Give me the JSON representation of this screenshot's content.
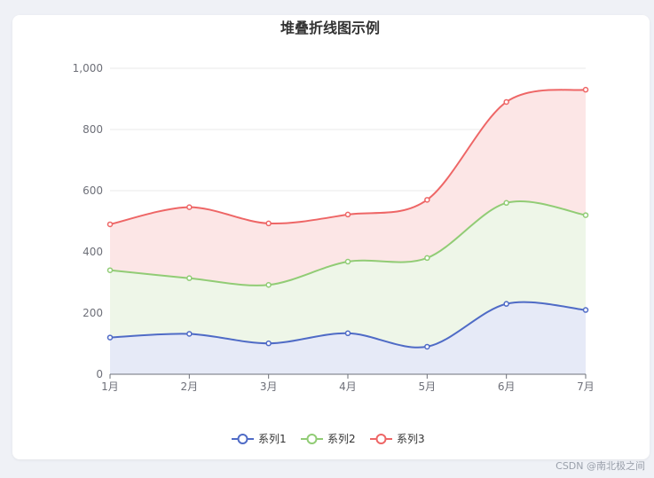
{
  "chart_data": {
    "type": "line",
    "title": "堆叠折线图示例",
    "stacked": true,
    "area": true,
    "smooth": true,
    "categories": [
      "1月",
      "2月",
      "3月",
      "4月",
      "5月",
      "6月",
      "7月"
    ],
    "series": [
      {
        "name": "系列1",
        "color": "#4f6bc6",
        "fill": "#e6eaf7",
        "values": [
          120,
          132,
          101,
          134,
          90,
          230,
          210
        ]
      },
      {
        "name": "系列2",
        "color": "#91cc75",
        "fill": "#eef6e8",
        "values": [
          220,
          182,
          191,
          234,
          290,
          330,
          310
        ]
      },
      {
        "name": "系列3",
        "color": "#ee6666",
        "fill": "#fce6e6",
        "values": [
          150,
          232,
          201,
          154,
          190,
          330,
          410
        ]
      }
    ],
    "stacked_totals": {
      "系列1": [
        120,
        132,
        101,
        134,
        90,
        230,
        210
      ],
      "系列2": [
        340,
        314,
        292,
        368,
        380,
        560,
        520
      ],
      "系列3": [
        490,
        546,
        493,
        522,
        570,
        890,
        930
      ]
    },
    "ylim": [
      0,
      1000
    ],
    "yticks": [
      0,
      200,
      400,
      600,
      800,
      1000
    ],
    "ytick_labels": [
      "0",
      "200",
      "400",
      "600",
      "800",
      "1,000"
    ],
    "grid": true,
    "legend_position": "bottom"
  },
  "watermark": "CSDN @南北极之间"
}
